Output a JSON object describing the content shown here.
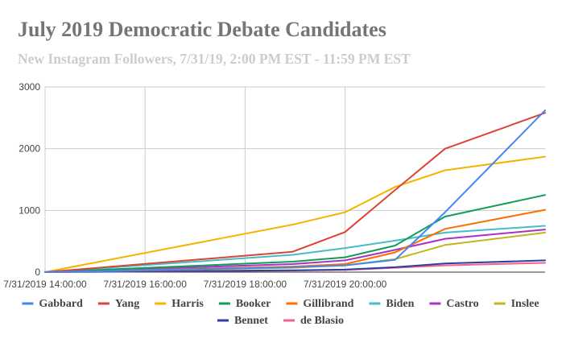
{
  "chart_data": {
    "type": "line",
    "title": "July 2019 Democratic Debate Candidates",
    "subtitle": "New Instagram Followers, 7/31/19, 2:00 PM EST - 11:59 PM EST",
    "xlabel": "",
    "ylabel": "",
    "ylim": [
      0,
      3000
    ],
    "xlim": [
      14,
      24
    ],
    "grid": true,
    "legend_position": "bottom",
    "y_ticks": [
      {
        "value": 0,
        "label": "0"
      },
      {
        "value": 1000,
        "label": "1000"
      },
      {
        "value": 2000,
        "label": "2000"
      },
      {
        "value": 3000,
        "label": "3000"
      }
    ],
    "x_ticks": [
      {
        "value": 14,
        "label": "7/31/2019 14:00:00"
      },
      {
        "value": 16,
        "label": "7/31/2019 16:00:00"
      },
      {
        "value": 18,
        "label": "7/31/2019 18:00:00"
      },
      {
        "value": 20,
        "label": "7/31/2019 20:00:00"
      }
    ],
    "x": [
      14,
      18.95,
      20,
      21,
      22,
      24
    ],
    "series": [
      {
        "name": "Gabbard",
        "color": "#4285f4",
        "values": [
          0,
          80,
          110,
          200,
          970,
          2620
        ]
      },
      {
        "name": "Yang",
        "color": "#db4437",
        "values": [
          0,
          330,
          650,
          1330,
          2000,
          2580
        ]
      },
      {
        "name": "Harris",
        "color": "#f4b400",
        "values": [
          0,
          770,
          970,
          1380,
          1650,
          1870
        ]
      },
      {
        "name": "Booker",
        "color": "#0f9d58",
        "values": [
          0,
          170,
          240,
          430,
          900,
          1250
        ]
      },
      {
        "name": "Gillibrand",
        "color": "#ff6d00",
        "values": [
          0,
          90,
          130,
          320,
          700,
          1010
        ]
      },
      {
        "name": "Biden",
        "color": "#46bdc6",
        "values": [
          0,
          280,
          390,
          510,
          640,
          750
        ]
      },
      {
        "name": "Castro",
        "color": "#ab30c4",
        "values": [
          0,
          130,
          190,
          360,
          540,
          690
        ]
      },
      {
        "name": "Inslee",
        "color": "#c2b51e",
        "values": [
          0,
          70,
          110,
          210,
          440,
          640
        ]
      },
      {
        "name": "Bennet",
        "color": "#303f9f",
        "values": [
          0,
          30,
          40,
          80,
          140,
          190
        ]
      },
      {
        "name": "de Blasio",
        "color": "#f06292",
        "values": [
          0,
          25,
          35,
          70,
          110,
          150
        ]
      }
    ]
  }
}
